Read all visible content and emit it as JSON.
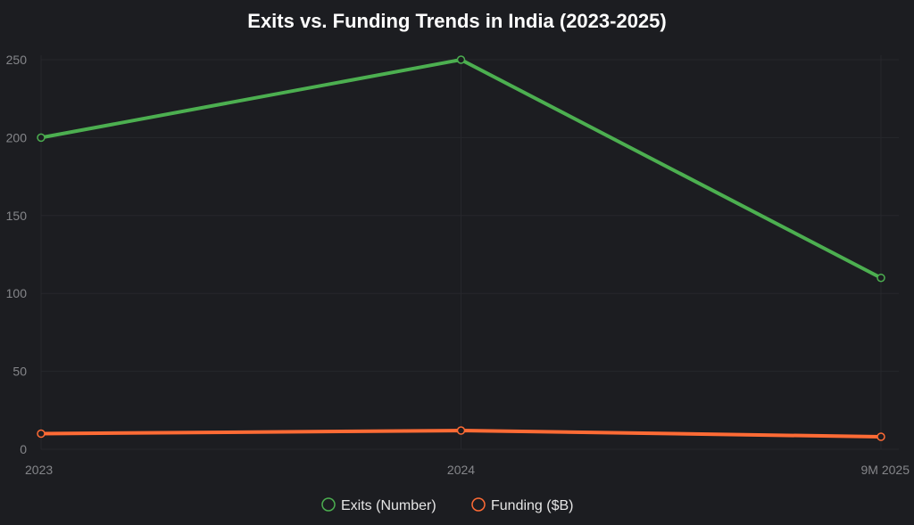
{
  "chart_data": {
    "type": "line",
    "title": "Exits vs. Funding Trends in India (2023-2025)",
    "xlabel": "",
    "ylabel": "",
    "categories": [
      "2023",
      "2024",
      "9M 2025"
    ],
    "ylim": [
      0,
      250
    ],
    "yticks": [
      0,
      50,
      100,
      150,
      200,
      250
    ],
    "grid": true,
    "legend_position": "bottom",
    "series": [
      {
        "name": "Exits (Number)",
        "values": [
          200,
          250,
          110
        ],
        "color": "#4caf50"
      },
      {
        "name": "Funding ($B)",
        "values": [
          10,
          12,
          8
        ],
        "color": "#ff6b35"
      }
    ]
  }
}
